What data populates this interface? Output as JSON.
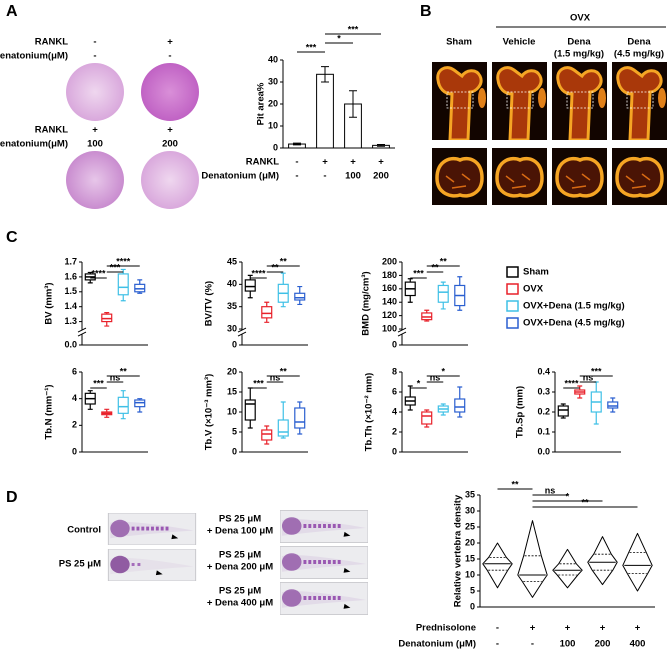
{
  "panel_labels": [
    "A",
    "B",
    "C",
    "D"
  ],
  "panel_a": {
    "rows_top": [
      {
        "label": "RANKL",
        "values": [
          "-",
          "+"
        ]
      },
      {
        "label": "Denatonium(μM)",
        "values": [
          "-",
          "-"
        ]
      }
    ],
    "rows_bottom": [
      {
        "label": "RANKL",
        "values": [
          "+",
          "+"
        ]
      },
      {
        "label": "Denatonium(μM)",
        "values": [
          "100",
          "200"
        ]
      }
    ]
  },
  "panel_b": {
    "group": "OVX",
    "columns": [
      [
        "Sham"
      ],
      [
        "Vehicle"
      ],
      [
        "Dena",
        "(1.5 mg/kg)"
      ],
      [
        "Dena",
        "(4.5 mg/kg)"
      ]
    ]
  },
  "panel_c": {
    "legend": [
      {
        "name": "Sham",
        "color": "#000000"
      },
      {
        "name": "OVX",
        "color": "#e8212a"
      },
      {
        "name": "OVX+Dena (1.5 mg/kg)",
        "color": "#3fc0e6"
      },
      {
        "name": "OVX+Dena (4.5 mg/kg)",
        "color": "#2a5fd0"
      }
    ]
  },
  "panel_d": {
    "left": [
      [
        "Control"
      ],
      [
        "PS 25 μM"
      ]
    ],
    "right": [
      [
        "PS 25 μM",
        "+ Dena 100 μM"
      ],
      [
        "PS 25 μM",
        "+ Dena 200 μM"
      ],
      [
        "PS 25 μM",
        "+ Dena 400 μM"
      ]
    ]
  },
  "chart_data": [
    {
      "type": "bar",
      "ylabel": "Pit area%",
      "values": [
        1.8,
        33.5,
        20,
        1.2
      ],
      "errors": [
        0.4,
        3.5,
        6,
        0.4
      ],
      "color": "#ffffff",
      "ylim": [
        0,
        40
      ],
      "yticks": [
        0,
        10,
        20,
        30,
        40
      ],
      "rows": [
        {
          "label": "RANKL",
          "values": [
            "-",
            "+",
            "+",
            "+"
          ]
        },
        {
          "label": "Denatonium (μM)",
          "values": [
            "-",
            "-",
            "100",
            "200"
          ]
        }
      ],
      "significance": [
        {
          "label": "***",
          "groups": [
            0,
            1
          ]
        },
        {
          "label": "*",
          "groups": [
            1,
            2
          ]
        },
        {
          "label": "***",
          "groups": [
            1,
            3
          ]
        }
      ]
    },
    {
      "type": "box",
      "ylabel": "BV (mm³)",
      "ylim": [
        0,
        1.7
      ],
      "ybreak": [
        0.1,
        1.25
      ],
      "yticks": [
        {
          "value": 0,
          "label": "0.0"
        },
        1.3,
        1.4,
        1.5,
        1.6,
        1.7
      ],
      "boxes": [
        {
          "color": "#000000",
          "min": 1.56,
          "q1": 1.58,
          "median": 1.6,
          "q3": 1.62,
          "max": 1.63
        },
        {
          "color": "#e8212a",
          "min": 1.27,
          "q1": 1.3,
          "median": 1.32,
          "q3": 1.35,
          "max": 1.36
        },
        {
          "color": "#3fc0e6",
          "min": 1.44,
          "q1": 1.48,
          "median": 1.53,
          "q3": 1.62,
          "max": 1.65
        },
        {
          "color": "#2a5fd0",
          "min": 1.49,
          "q1": 1.5,
          "median": 1.52,
          "q3": 1.55,
          "max": 1.58
        }
      ],
      "significance": [
        {
          "label": "****",
          "groups": [
            0,
            1
          ]
        },
        {
          "label": "***",
          "groups": [
            1,
            2
          ]
        },
        {
          "label": "****",
          "groups": [
            1,
            3
          ]
        }
      ]
    },
    {
      "type": "box",
      "ylabel": "BV/TV (%)",
      "ylim": [
        0,
        45
      ],
      "ybreak": [
        5,
        30
      ],
      "yticks": [
        0,
        30,
        35,
        40,
        45
      ],
      "boxes": [
        {
          "color": "#000000",
          "min": 37,
          "q1": 38.5,
          "median": 39.5,
          "q3": 41,
          "max": 42
        },
        {
          "color": "#e8212a",
          "min": 31.5,
          "q1": 32.5,
          "median": 33.5,
          "q3": 35,
          "max": 36
        },
        {
          "color": "#3fc0e6",
          "min": 35,
          "q1": 36,
          "median": 38,
          "q3": 40,
          "max": 42.5
        },
        {
          "color": "#2a5fd0",
          "min": 35.5,
          "q1": 36.5,
          "median": 37,
          "q3": 38,
          "max": 39.5
        }
      ],
      "significance": [
        {
          "label": "****",
          "groups": [
            0,
            1
          ]
        },
        {
          "label": "**",
          "groups": [
            1,
            2
          ]
        },
        {
          "label": "**",
          "groups": [
            1,
            3
          ]
        }
      ]
    },
    {
      "type": "box",
      "ylabel": "BMD (mg/cm³)",
      "ylim": [
        0,
        200
      ],
      "ybreak": [
        20,
        100
      ],
      "yticks": [
        0,
        100,
        120,
        140,
        160,
        180,
        200
      ],
      "boxes": [
        {
          "color": "#000000",
          "min": 140,
          "q1": 150,
          "median": 160,
          "q3": 170,
          "max": 175
        },
        {
          "color": "#e8212a",
          "min": 112,
          "q1": 114,
          "median": 118,
          "q3": 124,
          "max": 128
        },
        {
          "color": "#3fc0e6",
          "min": 130,
          "q1": 140,
          "median": 155,
          "q3": 165,
          "max": 170
        },
        {
          "color": "#2a5fd0",
          "min": 128,
          "q1": 135,
          "median": 150,
          "q3": 165,
          "max": 178
        }
      ],
      "significance": [
        {
          "label": "***",
          "groups": [
            0,
            1
          ]
        },
        {
          "label": "**",
          "groups": [
            1,
            2
          ]
        },
        {
          "label": "**",
          "groups": [
            1,
            3
          ]
        }
      ]
    },
    {
      "type": "box",
      "ylabel": "Tb.N (mm⁻¹)",
      "ylim": [
        0,
        6
      ],
      "yticks": [
        0,
        2,
        4,
        6
      ],
      "boxes": [
        {
          "color": "#000000",
          "min": 3.2,
          "q1": 3.6,
          "median": 4,
          "q3": 4.4,
          "max": 4.6
        },
        {
          "color": "#e8212a",
          "min": 2.6,
          "q1": 2.8,
          "median": 2.9,
          "q3": 3.0,
          "max": 3.2
        },
        {
          "color": "#3fc0e6",
          "min": 2.5,
          "q1": 2.9,
          "median": 3.4,
          "q3": 4.1,
          "max": 4.6
        },
        {
          "color": "#2a5fd0",
          "min": 3,
          "q1": 3.4,
          "median": 3.7,
          "q3": 3.9,
          "max": 4
        }
      ],
      "significance": [
        {
          "label": "***",
          "groups": [
            0,
            1
          ]
        },
        {
          "label": "ns",
          "groups": [
            1,
            2
          ]
        },
        {
          "label": "**",
          "groups": [
            1,
            3
          ]
        }
      ]
    },
    {
      "type": "box",
      "ylabel": "Tb.V (×10⁻³ mm³)",
      "ylim": [
        0,
        20
      ],
      "yticks": [
        0,
        5,
        10,
        15,
        20
      ],
      "boxes": [
        {
          "color": "#000000",
          "min": 6,
          "q1": 8,
          "median": 12,
          "q3": 13,
          "max": 16
        },
        {
          "color": "#e8212a",
          "min": 2,
          "q1": 3,
          "median": 4.5,
          "q3": 5.5,
          "max": 6.5
        },
        {
          "color": "#3fc0e6",
          "min": 3.5,
          "q1": 4,
          "median": 5,
          "q3": 8,
          "max": 12.5
        },
        {
          "color": "#2a5fd0",
          "min": 4.5,
          "q1": 6,
          "median": 7.5,
          "q3": 11,
          "max": 12.5
        }
      ],
      "significance": [
        {
          "label": "***",
          "groups": [
            0,
            1
          ]
        },
        {
          "label": "ns",
          "groups": [
            1,
            2
          ]
        },
        {
          "label": "**",
          "groups": [
            1,
            3
          ]
        }
      ]
    },
    {
      "type": "box",
      "ylabel": "Tb.Th (×10⁻² mm)",
      "ylim": [
        0,
        8
      ],
      "yticks": [
        0,
        2,
        4,
        6,
        8
      ],
      "boxes": [
        {
          "color": "#000000",
          "min": 4.2,
          "q1": 4.7,
          "median": 5.1,
          "q3": 5.5,
          "max": 6.6
        },
        {
          "color": "#e8212a",
          "min": 2.5,
          "q1": 2.8,
          "median": 3.6,
          "q3": 4,
          "max": 4.2
        },
        {
          "color": "#3fc0e6",
          "min": 3.7,
          "q1": 4,
          "median": 4.3,
          "q3": 4.6,
          "max": 4.8
        },
        {
          "color": "#2a5fd0",
          "min": 3.5,
          "q1": 4,
          "median": 4.5,
          "q3": 5.3,
          "max": 6.5
        }
      ],
      "significance": [
        {
          "label": "*",
          "groups": [
            0,
            1
          ]
        },
        {
          "label": "ns",
          "groups": [
            1,
            2
          ]
        },
        {
          "label": "*",
          "groups": [
            1,
            3
          ]
        }
      ]
    },
    {
      "type": "box",
      "ylabel": "Tb.Sp (mm)",
      "ylim": [
        0,
        0.4
      ],
      "yticks": [
        {
          "value": 0,
          "label": "0.0"
        },
        0.1,
        0.2,
        0.3,
        0.4
      ],
      "boxes": [
        {
          "color": "#000000",
          "min": 0.17,
          "q1": 0.18,
          "median": 0.21,
          "q3": 0.23,
          "max": 0.24
        },
        {
          "color": "#e8212a",
          "min": 0.27,
          "q1": 0.29,
          "median": 0.3,
          "q3": 0.31,
          "max": 0.33
        },
        {
          "color": "#3fc0e6",
          "min": 0.14,
          "q1": 0.2,
          "median": 0.25,
          "q3": 0.3,
          "max": 0.35
        },
        {
          "color": "#2a5fd0",
          "min": 0.2,
          "q1": 0.22,
          "median": 0.23,
          "q3": 0.25,
          "max": 0.27
        }
      ],
      "significance": [
        {
          "label": "****",
          "groups": [
            0,
            1
          ]
        },
        {
          "label": "ns",
          "groups": [
            1,
            2
          ]
        },
        {
          "label": "***",
          "groups": [
            1,
            3
          ]
        }
      ]
    },
    {
      "type": "violin",
      "ylabel": "Relative vertebra density",
      "ylim": [
        0,
        35
      ],
      "yticks": [
        0,
        5,
        10,
        15,
        20,
        25,
        30,
        35
      ],
      "color": "#000000",
      "violins": [
        {
          "min": 6,
          "q1": 11.5,
          "median": 13.5,
          "q3": 15.5,
          "max": 20
        },
        {
          "min": 3,
          "q1": 8,
          "median": 10,
          "q3": 16,
          "max": 27
        },
        {
          "min": 6,
          "q1": 10,
          "median": 11.5,
          "q3": 13.5,
          "max": 18
        },
        {
          "min": 7,
          "q1": 11.5,
          "median": 14,
          "q3": 16.5,
          "max": 22
        },
        {
          "min": 5,
          "q1": 10.5,
          "median": 13,
          "q3": 17,
          "max": 23
        }
      ],
      "rows": [
        {
          "label": "Prednisolone",
          "values": [
            "-",
            "+",
            "+",
            "+",
            "+"
          ]
        },
        {
          "label": "Denatonium (μM)",
          "values": [
            "-",
            "-",
            "100",
            "200",
            "400"
          ]
        }
      ],
      "significance": [
        {
          "label": "**",
          "groups": [
            0,
            1
          ]
        },
        {
          "label": "ns",
          "groups": [
            1,
            2
          ]
        },
        {
          "label": "*",
          "groups": [
            1,
            3
          ]
        },
        {
          "label": "**",
          "groups": [
            1,
            4
          ]
        }
      ]
    }
  ]
}
